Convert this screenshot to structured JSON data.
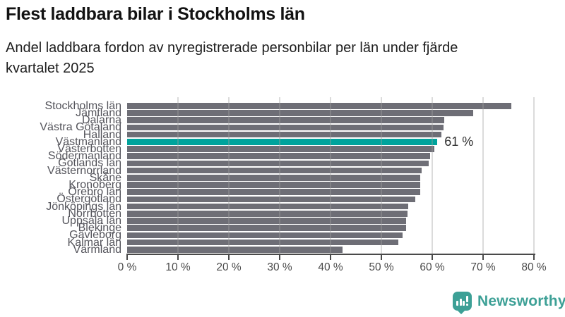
{
  "header": {
    "title": "Flest laddbara bilar i Stockholms län",
    "subtitle_lines": [
      "Andel laddbara fordon av nyregistrerade personbilar per län under fjärde",
      "kvartalet 2025"
    ]
  },
  "chart_data": {
    "type": "bar",
    "orientation": "horizontal",
    "title": "Flest laddbara bilar i Stockholms län",
    "subtitle": "Andel laddbara fordon av nyregistrerade personbilar per län under fjärde kvartalet 2025",
    "categories": [
      "Stockholms län",
      "Jämtland",
      "Dalarna",
      "Västra Götaland",
      "Halland",
      "Västmanland",
      "Västerbotten",
      "Södermanland",
      "Gotlands län",
      "Västernorrland",
      "Skåne",
      "Kronoberg",
      "Örebro län",
      "Östergötland",
      "Jönköpings län",
      "Norrbotten",
      "Uppsala län",
      "Blekinge",
      "Gävleborg",
      "Kalmar län",
      "Värmland"
    ],
    "values": [
      75.5,
      68.0,
      62.4,
      62.2,
      61.8,
      61.0,
      60.4,
      59.6,
      59.3,
      57.9,
      57.6,
      57.6,
      57.6,
      56.6,
      55.3,
      55.2,
      54.9,
      54.8,
      54.2,
      53.3,
      42.3
    ],
    "unit": "%",
    "highlight_index": 5,
    "highlight_label": "61 %",
    "bar_color": "#6e6e76",
    "highlight_color": "#00a39c",
    "x_ticks": [
      "0 %",
      "10 %",
      "20 %",
      "30 %",
      "40 %",
      "50 %",
      "60 %",
      "70 %",
      "80 %"
    ],
    "xlim": [
      0,
      80
    ],
    "xlabel": "",
    "ylabel": "",
    "grid": true,
    "legend": "none"
  },
  "footer": {
    "brand": "Newsworthy",
    "brand_color": "#3da096",
    "logo_icon": "bar-chart-speech-bubble-icon"
  }
}
